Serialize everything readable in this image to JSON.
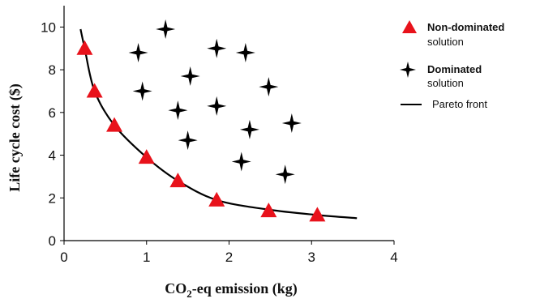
{
  "chart_data": {
    "type": "scatter",
    "xlabel_main": "CO",
    "xlabel_sub": "2",
    "xlabel_rest": "-eq emission (kg)",
    "ylabel": "Life cycle cost ($)",
    "xlim": [
      0,
      4
    ],
    "ylim": [
      0,
      11
    ],
    "x_ticks": [
      "0",
      "1",
      "2",
      "3",
      "4"
    ],
    "y_ticks": [
      "0",
      "2",
      "4",
      "6",
      "8",
      "10"
    ],
    "legend": {
      "position": "right",
      "nondominated_line1": "Non-dominated",
      "nondominated_line2": "solution",
      "dominated_line1": "Dominated",
      "dominated_line2": "solution",
      "pareto": "Pareto front"
    },
    "colors": {
      "nondominated": "#e8121b",
      "dominated": "#000000",
      "pareto": "#000000"
    },
    "series": [
      {
        "name": "Non-dominated solution",
        "marker": "triangle",
        "points": [
          [
            0.25,
            9.0
          ],
          [
            0.37,
            7.0
          ],
          [
            0.61,
            5.4
          ],
          [
            1.0,
            3.9
          ],
          [
            1.38,
            2.8
          ],
          [
            1.85,
            1.9
          ],
          [
            2.48,
            1.4
          ],
          [
            3.07,
            1.2
          ]
        ]
      },
      {
        "name": "Dominated solution",
        "marker": "star",
        "points": [
          [
            1.23,
            9.9
          ],
          [
            0.9,
            8.8
          ],
          [
            1.85,
            9.0
          ],
          [
            2.2,
            8.8
          ],
          [
            1.53,
            7.7
          ],
          [
            0.95,
            7.0
          ],
          [
            2.48,
            7.2
          ],
          [
            1.38,
            6.1
          ],
          [
            1.85,
            6.3
          ],
          [
            2.25,
            5.2
          ],
          [
            2.76,
            5.5
          ],
          [
            1.5,
            4.7
          ],
          [
            2.15,
            3.7
          ],
          [
            2.68,
            3.1
          ]
        ]
      },
      {
        "name": "Pareto front",
        "marker": "line",
        "points": [
          [
            0.2,
            9.9
          ],
          [
            0.25,
            9.0
          ],
          [
            0.37,
            7.0
          ],
          [
            0.61,
            5.4
          ],
          [
            1.0,
            3.9
          ],
          [
            1.38,
            2.8
          ],
          [
            1.85,
            1.9
          ],
          [
            2.48,
            1.45
          ],
          [
            3.07,
            1.2
          ],
          [
            3.55,
            1.05
          ]
        ]
      }
    ]
  }
}
